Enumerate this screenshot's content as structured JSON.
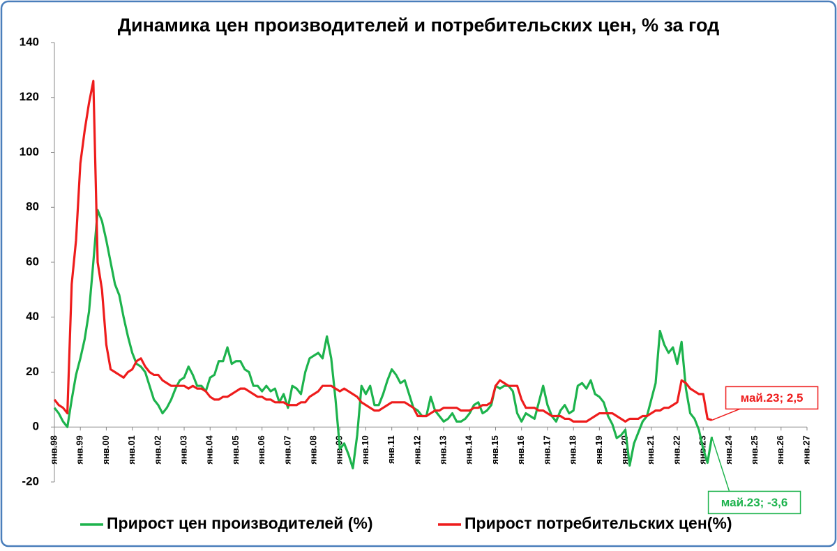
{
  "chart_data": {
    "type": "line",
    "title": "Динамика цен производителей и потребительских цен, % за год",
    "categories": [
      "янв.98",
      null,
      null,
      null,
      null,
      null,
      "янв.99",
      null,
      null,
      null,
      null,
      null,
      "янв.00",
      null,
      null,
      null,
      null,
      null,
      "янв.01",
      null,
      null,
      null,
      null,
      null,
      "янв.02",
      null,
      null,
      null,
      null,
      null,
      "янв.03",
      null,
      null,
      null,
      null,
      null,
      "янв.04",
      null,
      null,
      null,
      null,
      null,
      "янв.05",
      null,
      null,
      null,
      null,
      null,
      "янв.06",
      null,
      null,
      null,
      null,
      null,
      "янв.07",
      null,
      null,
      null,
      null,
      null,
      "янв.08",
      null,
      null,
      null,
      null,
      null,
      "янв.09",
      null,
      null,
      null,
      null,
      null,
      "янв.10",
      null,
      null,
      null,
      null,
      null,
      "янв.11",
      null,
      null,
      null,
      null,
      null,
      "янв.12",
      null,
      null,
      null,
      null,
      null,
      "янв.13",
      null,
      null,
      null,
      null,
      null,
      "янв.14",
      null,
      null,
      null,
      null,
      null,
      "янв.15",
      null,
      null,
      null,
      null,
      null,
      "янв.16",
      null,
      null,
      null,
      null,
      null,
      "янв.17",
      null,
      null,
      null,
      null,
      null,
      "янв.18",
      null,
      null,
      null,
      null,
      null,
      "янв.19",
      null,
      null,
      null,
      null,
      null,
      "янв.20",
      null,
      null,
      null,
      null,
      null,
      "янв.21",
      null,
      null,
      null,
      null,
      null,
      "янв.22",
      null,
      null,
      null,
      null,
      null,
      "янв.23",
      null,
      null,
      null,
      null,
      null,
      "янв.24",
      null,
      null,
      null,
      null,
      null,
      "янв.25",
      null,
      null,
      null,
      null,
      null,
      "янв.26",
      null,
      null,
      null,
      null,
      null,
      "янв.27"
    ],
    "series": [
      {
        "name": "Прирост цен производителей (%)",
        "color": "#1db34d",
        "values": [
          7,
          5,
          2,
          0,
          10,
          19,
          25,
          32,
          42,
          60,
          79,
          75,
          68,
          60,
          52,
          48,
          40,
          33,
          27,
          23,
          22,
          20,
          15,
          10,
          8,
          5,
          7,
          10,
          14,
          17,
          18,
          22,
          19,
          15,
          15,
          13,
          18,
          19,
          24,
          24,
          29,
          23,
          24,
          24,
          21,
          20,
          15,
          15,
          13,
          15,
          13,
          14,
          9,
          12,
          7,
          15,
          14,
          12,
          20,
          25,
          26,
          27,
          25,
          33,
          25,
          10,
          -8,
          -6,
          -10,
          -15,
          -3,
          15,
          12,
          15,
          8,
          8,
          12,
          17,
          21,
          19,
          16,
          17,
          12,
          7,
          6,
          4,
          4,
          11,
          6,
          4,
          2,
          3,
          5,
          2,
          2,
          3,
          5,
          8,
          9,
          5,
          6,
          8,
          15,
          14,
          15,
          15,
          13,
          5,
          2,
          5,
          4,
          3,
          9,
          15,
          8,
          4,
          2,
          6,
          8,
          5,
          6,
          15,
          16,
          14,
          17,
          12,
          11,
          9,
          4,
          1,
          -4,
          -3,
          -1,
          -14,
          -6,
          -2,
          2,
          4,
          10,
          16,
          35,
          30,
          27,
          29,
          23,
          31,
          14,
          5,
          3,
          -1,
          -8,
          -13,
          -3.6,
          null,
          null,
          null,
          null,
          null,
          null,
          null,
          null,
          null,
          null,
          null,
          null,
          null,
          null,
          null,
          null,
          null,
          null,
          null,
          null,
          null,
          null
        ]
      },
      {
        "name": "Прирост потребительских цен(%)",
        "color": "#ee1c1c",
        "values": [
          10,
          8,
          7,
          5,
          52,
          68,
          96,
          108,
          118,
          126,
          60,
          50,
          30,
          21,
          20,
          19,
          18,
          20,
          21,
          24,
          25,
          22,
          20,
          19,
          19,
          17,
          16,
          15,
          15,
          15,
          15,
          14,
          15,
          14,
          14,
          13,
          11,
          10,
          10,
          11,
          11,
          12,
          13,
          14,
          14,
          13,
          12,
          11,
          11,
          10,
          10,
          9,
          9,
          9,
          8,
          8,
          8,
          9,
          9,
          11,
          12,
          13,
          15,
          15,
          15,
          14,
          13,
          14,
          13,
          12,
          11,
          9,
          8,
          7,
          6,
          6,
          7,
          8,
          9,
          9,
          9,
          9,
          8,
          7,
          4,
          4,
          4,
          5,
          6,
          6,
          7,
          7,
          7,
          7,
          6,
          6,
          6,
          7,
          7,
          8,
          8,
          9,
          15,
          17,
          16,
          15,
          15,
          15,
          10,
          7,
          7,
          7,
          6,
          6,
          5,
          4,
          4,
          4,
          3,
          3,
          2,
          2,
          2,
          2,
          3,
          4,
          5,
          5,
          5,
          5,
          4,
          3,
          2,
          3,
          3,
          3,
          4,
          4,
          5,
          6,
          6,
          7,
          7,
          8,
          9,
          17,
          16,
          14,
          13,
          12,
          12,
          3,
          2.5,
          null,
          null,
          null,
          null,
          null,
          null,
          null,
          null,
          null,
          null,
          null,
          null,
          null,
          null,
          null,
          null,
          null,
          null,
          null,
          null,
          null,
          null
        ]
      }
    ],
    "annotations": [
      "май.23; -3,6",
      "май.23; 2,5"
    ],
    "ylim": [
      -20,
      140
    ],
    "yticks": [
      -20,
      0,
      20,
      40,
      60,
      80,
      100,
      120,
      140
    ],
    "grid": false,
    "legend": "bottom"
  }
}
